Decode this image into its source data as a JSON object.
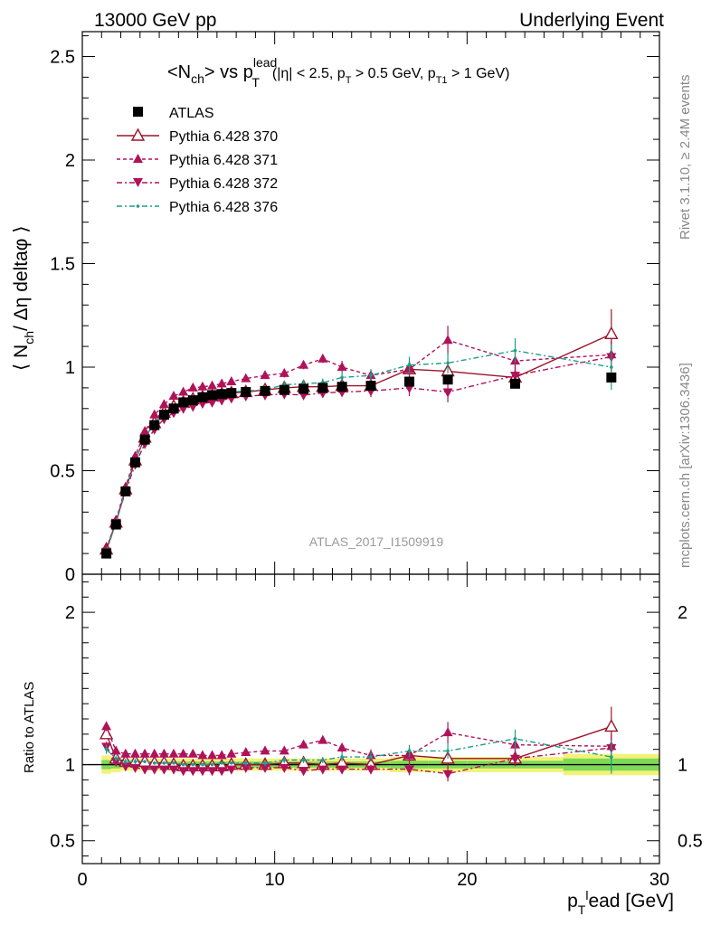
{
  "header": {
    "left": "13000 GeV pp",
    "right": "Underlying Event"
  },
  "side_text": {
    "rivet": "Rivet 3.1.10, ≥ 2.4M events",
    "mcplots": "mcplots.cern.ch [arXiv:1306.3436]"
  },
  "watermark": "ATLAS_2017_I1509919",
  "legend": {
    "atlas": "ATLAS",
    "p370": "Pythia 6.428 370",
    "p371": "Pythia 6.428 371",
    "p372": "Pythia 6.428 372",
    "p376": "Pythia 6.428 376"
  },
  "colors": {
    "data": "#000000",
    "p370": "#9a1428",
    "p371": "#b0125a",
    "p372": "#b0125a",
    "p376": "#1f9e89",
    "band_inner": "#7ed957",
    "band_outer": "#f2f27a"
  },
  "chart_data": [
    {
      "type": "scatter",
      "title_main": "<N",
      "title_sub": "ch",
      "title_mid": "> vs p",
      "title_sup": "lead",
      "title_sub2": "T",
      "title_cuts_1": "(|η| < 2.5, p",
      "title_cuts_2": "T",
      "title_cuts_3": " > 0.5 GeV, p",
      "title_cuts_4": "T1",
      "title_cuts_5": " > 1 GeV)",
      "ylabel_1": "⟨ N",
      "ylabel_2": "ch",
      "ylabel_3": "/ Δη deltaφ ⟩",
      "xlim": [
        0,
        30
      ],
      "ylim": [
        0,
        2.62
      ],
      "yticks": [
        "0",
        "0.5",
        "1",
        "1.5",
        "2",
        "2.5"
      ],
      "yticks_values": [
        0,
        0.5,
        1,
        1.5,
        2,
        2.5
      ],
      "x": [
        1.25,
        1.75,
        2.25,
        2.75,
        3.25,
        3.75,
        4.25,
        4.75,
        5.25,
        5.75,
        6.25,
        6.75,
        7.25,
        7.75,
        8.5,
        9.5,
        10.5,
        11.5,
        12.5,
        13.5,
        15.0,
        17.0,
        19.0,
        22.5,
        27.5
      ],
      "series": [
        {
          "name": "ATLAS",
          "marker": "square",
          "values": [
            0.1,
            0.24,
            0.4,
            0.54,
            0.65,
            0.72,
            0.77,
            0.8,
            0.83,
            0.84,
            0.855,
            0.865,
            0.87,
            0.875,
            0.88,
            0.885,
            0.89,
            0.895,
            0.9,
            0.905,
            0.91,
            0.93,
            0.94,
            0.92,
            0.95
          ]
        },
        {
          "name": "Pythia 6.428 370",
          "marker": "triangle-open",
          "values": [
            0.12,
            0.25,
            0.41,
            0.55,
            0.66,
            0.73,
            0.78,
            0.81,
            0.83,
            0.845,
            0.855,
            0.86,
            0.87,
            0.875,
            0.88,
            0.89,
            0.9,
            0.905,
            0.905,
            0.91,
            0.91,
            0.99,
            0.98,
            0.95,
            1.16
          ],
          "errors": [
            0.01,
            0.01,
            0.01,
            0.01,
            0.01,
            0.01,
            0.01,
            0.01,
            0.01,
            0.01,
            0.01,
            0.01,
            0.01,
            0.01,
            0.01,
            0.01,
            0.02,
            0.02,
            0.02,
            0.02,
            0.03,
            0.04,
            0.05,
            0.05,
            0.12
          ]
        },
        {
          "name": "Pythia 6.428 371",
          "marker": "triangle-up",
          "values": [
            0.12,
            0.26,
            0.42,
            0.57,
            0.69,
            0.77,
            0.82,
            0.86,
            0.88,
            0.9,
            0.905,
            0.91,
            0.92,
            0.93,
            0.945,
            0.96,
            0.97,
            1.01,
            1.04,
            1.0,
            0.96,
            0.99,
            1.13,
            1.03,
            1.06
          ],
          "errors": [
            0.01,
            0.01,
            0.01,
            0.01,
            0.01,
            0.01,
            0.01,
            0.01,
            0.01,
            0.01,
            0.01,
            0.01,
            0.01,
            0.01,
            0.01,
            0.01,
            0.02,
            0.02,
            0.02,
            0.03,
            0.03,
            0.04,
            0.07,
            0.05,
            0.08
          ]
        },
        {
          "name": "Pythia 6.428 372",
          "marker": "triangle-down",
          "values": [
            0.11,
            0.25,
            0.4,
            0.53,
            0.63,
            0.7,
            0.75,
            0.78,
            0.8,
            0.81,
            0.825,
            0.83,
            0.84,
            0.85,
            0.86,
            0.865,
            0.87,
            0.865,
            0.875,
            0.88,
            0.885,
            0.9,
            0.88,
            0.96,
            1.05
          ],
          "errors": [
            0.01,
            0.01,
            0.01,
            0.01,
            0.01,
            0.01,
            0.01,
            0.01,
            0.01,
            0.01,
            0.01,
            0.01,
            0.01,
            0.01,
            0.01,
            0.01,
            0.02,
            0.02,
            0.02,
            0.02,
            0.03,
            0.04,
            0.05,
            0.05,
            0.07
          ]
        },
        {
          "name": "Pythia 6.428 376",
          "marker": "dot",
          "values": [
            0.11,
            0.25,
            0.41,
            0.55,
            0.66,
            0.73,
            0.78,
            0.81,
            0.83,
            0.84,
            0.855,
            0.865,
            0.875,
            0.88,
            0.885,
            0.89,
            0.915,
            0.92,
            0.925,
            0.95,
            0.96,
            1.01,
            1.02,
            1.08,
            1.0
          ],
          "errors": [
            0.01,
            0.01,
            0.01,
            0.01,
            0.01,
            0.01,
            0.01,
            0.01,
            0.01,
            0.01,
            0.01,
            0.01,
            0.01,
            0.01,
            0.01,
            0.01,
            0.02,
            0.02,
            0.02,
            0.03,
            0.03,
            0.04,
            0.05,
            0.06,
            0.11
          ]
        }
      ]
    },
    {
      "type": "scatter",
      "ylabel": "Ratio to ATLAS",
      "xlabel_1": "p",
      "xlabel_2": "T",
      "xlabel_3": "l",
      "xlabel_4": "ead [GeV]",
      "xlim": [
        0,
        30
      ],
      "ylim": [
        0.35,
        2.25
      ],
      "xticks": [
        "0",
        "10",
        "20",
        "30"
      ],
      "xticks_values": [
        0,
        10,
        20,
        30
      ],
      "yticks": [
        "0.5",
        "1",
        "2"
      ],
      "yticks_values": [
        0.5,
        1,
        2
      ],
      "x": [
        1.25,
        1.75,
        2.25,
        2.75,
        3.25,
        3.75,
        4.25,
        4.75,
        5.25,
        5.75,
        6.25,
        6.75,
        7.25,
        7.75,
        8.5,
        9.5,
        10.5,
        11.5,
        12.5,
        13.5,
        15.0,
        17.0,
        19.0,
        22.5,
        27.5
      ],
      "band_edges": [
        1.0,
        1.5,
        2.0,
        2.5,
        3.0,
        3.5,
        4.0,
        4.5,
        5.0,
        5.5,
        6.0,
        6.5,
        7.0,
        7.5,
        8.0,
        9.0,
        10.0,
        11.0,
        12.0,
        13.0,
        14.0,
        16.0,
        18.0,
        20.0,
        25.0,
        30.0
      ],
      "band_inner": [
        0.03,
        0.025,
        0.02,
        0.02,
        0.02,
        0.02,
        0.02,
        0.02,
        0.02,
        0.02,
        0.02,
        0.02,
        0.02,
        0.02,
        0.02,
        0.02,
        0.02,
        0.02,
        0.02,
        0.02,
        0.02,
        0.025,
        0.025,
        0.025,
        0.04
      ],
      "band_outer": [
        0.06,
        0.05,
        0.04,
        0.04,
        0.04,
        0.04,
        0.04,
        0.04,
        0.04,
        0.04,
        0.04,
        0.04,
        0.04,
        0.04,
        0.04,
        0.04,
        0.04,
        0.04,
        0.04,
        0.04,
        0.04,
        0.05,
        0.05,
        0.05,
        0.07
      ],
      "series": [
        {
          "name": "Pythia 6.428 370",
          "values": [
            1.2,
            1.04,
            1.02,
            1.02,
            1.02,
            1.01,
            1.01,
            1.0,
            0.99,
            0.99,
            0.99,
            0.99,
            0.99,
            1.0,
            1.0,
            1.0,
            1.01,
            1.01,
            1.0,
            1.01,
            1.0,
            1.06,
            1.04,
            1.04,
            1.25
          ],
          "errors": [
            0.03,
            0.02,
            0.02,
            0.02,
            0.01,
            0.01,
            0.01,
            0.01,
            0.01,
            0.01,
            0.01,
            0.01,
            0.01,
            0.01,
            0.02,
            0.02,
            0.02,
            0.02,
            0.02,
            0.02,
            0.03,
            0.04,
            0.05,
            0.05,
            0.13
          ]
        },
        {
          "name": "Pythia 6.428 371",
          "values": [
            1.25,
            1.09,
            1.07,
            1.07,
            1.07,
            1.07,
            1.07,
            1.07,
            1.07,
            1.07,
            1.06,
            1.06,
            1.06,
            1.07,
            1.08,
            1.09,
            1.09,
            1.13,
            1.16,
            1.11,
            1.06,
            1.06,
            1.21,
            1.13,
            1.12
          ],
          "errors": [
            0.03,
            0.02,
            0.02,
            0.02,
            0.01,
            0.01,
            0.01,
            0.01,
            0.01,
            0.01,
            0.01,
            0.01,
            0.01,
            0.01,
            0.02,
            0.02,
            0.02,
            0.02,
            0.02,
            0.03,
            0.04,
            0.05,
            0.07,
            0.05,
            0.08
          ]
        },
        {
          "name": "Pythia 6.428 372",
          "values": [
            1.12,
            1.02,
            0.99,
            0.98,
            0.97,
            0.97,
            0.97,
            0.97,
            0.96,
            0.96,
            0.96,
            0.96,
            0.96,
            0.97,
            0.98,
            0.98,
            0.98,
            0.96,
            0.97,
            0.97,
            0.97,
            0.97,
            0.94,
            1.04,
            1.11
          ],
          "errors": [
            0.03,
            0.02,
            0.02,
            0.02,
            0.01,
            0.01,
            0.01,
            0.01,
            0.01,
            0.01,
            0.01,
            0.01,
            0.01,
            0.01,
            0.02,
            0.02,
            0.02,
            0.02,
            0.02,
            0.02,
            0.03,
            0.04,
            0.05,
            0.05,
            0.08
          ]
        },
        {
          "name": "Pythia 6.428 376",
          "values": [
            1.1,
            1.04,
            1.02,
            1.02,
            1.02,
            1.01,
            1.01,
            1.01,
            1.0,
            1.0,
            1.0,
            1.0,
            1.01,
            1.01,
            1.01,
            1.01,
            1.03,
            1.03,
            1.03,
            1.05,
            1.05,
            1.09,
            1.09,
            1.17,
            1.05
          ],
          "errors": [
            0.03,
            0.02,
            0.02,
            0.02,
            0.01,
            0.01,
            0.01,
            0.01,
            0.01,
            0.01,
            0.01,
            0.01,
            0.01,
            0.01,
            0.02,
            0.02,
            0.02,
            0.02,
            0.02,
            0.03,
            0.03,
            0.04,
            0.05,
            0.06,
            0.11
          ]
        }
      ]
    }
  ]
}
